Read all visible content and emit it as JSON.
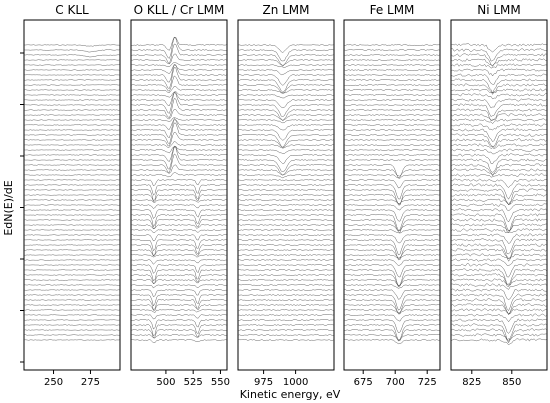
{
  "figure": {
    "ylabel": "EdN(E)/dE",
    "xlabel": "Kinetic energy, eV"
  },
  "chart_data": [
    {
      "type": "line",
      "title": "C KLL",
      "xlim": [
        230,
        295
      ],
      "xticks": [
        250,
        275
      ],
      "n_traces": 60,
      "features": [
        {
          "center": 275,
          "width": 5,
          "amp": -0.5,
          "y_range": [
            0.0,
            0.05
          ]
        }
      ]
    },
    {
      "type": "line",
      "title": "O KLL / Cr LMM",
      "xlim": [
        468,
        556
      ],
      "xticks": [
        500,
        525,
        550
      ],
      "n_traces": 60,
      "features": [
        {
          "center": 508,
          "width": 3,
          "amp": 3.5,
          "y_range": [
            0.0,
            0.45
          ]
        },
        {
          "center": 503,
          "width": 3,
          "amp": -2.5,
          "y_range": [
            0.0,
            0.45
          ]
        },
        {
          "center": 489,
          "width": 2,
          "amp": -3.0,
          "y_range": [
            0.45,
            1.0
          ]
        },
        {
          "center": 529,
          "width": 2,
          "amp": -2.5,
          "y_range": [
            0.45,
            1.0
          ]
        }
      ]
    },
    {
      "type": "line",
      "title": "Zn LMM",
      "xlim": [
        955,
        1030
      ],
      "xticks": [
        975,
        1000
      ],
      "n_traces": 60,
      "features": [
        {
          "center": 990,
          "width": 4,
          "amp": -3.0,
          "y_range": [
            0.0,
            0.45
          ]
        }
      ]
    },
    {
      "type": "line",
      "title": "Fe LMM",
      "xlim": [
        660,
        735
      ],
      "xticks": [
        675,
        700,
        725
      ],
      "n_traces": 60,
      "features": [
        {
          "center": 703,
          "width": 3,
          "amp": -4.0,
          "y_range": [
            0.4,
            1.0
          ]
        }
      ]
    },
    {
      "type": "line",
      "title": "Ni LMM",
      "xlim": [
        812,
        872
      ],
      "xticks": [
        825,
        850
      ],
      "n_traces": 60,
      "features": [
        {
          "center": 838,
          "width": 3,
          "amp": -3.0,
          "y_range": [
            0.0,
            0.45
          ]
        },
        {
          "center": 848,
          "width": 2.5,
          "amp": -4.0,
          "y_range": [
            0.45,
            1.0
          ]
        }
      ]
    }
  ]
}
